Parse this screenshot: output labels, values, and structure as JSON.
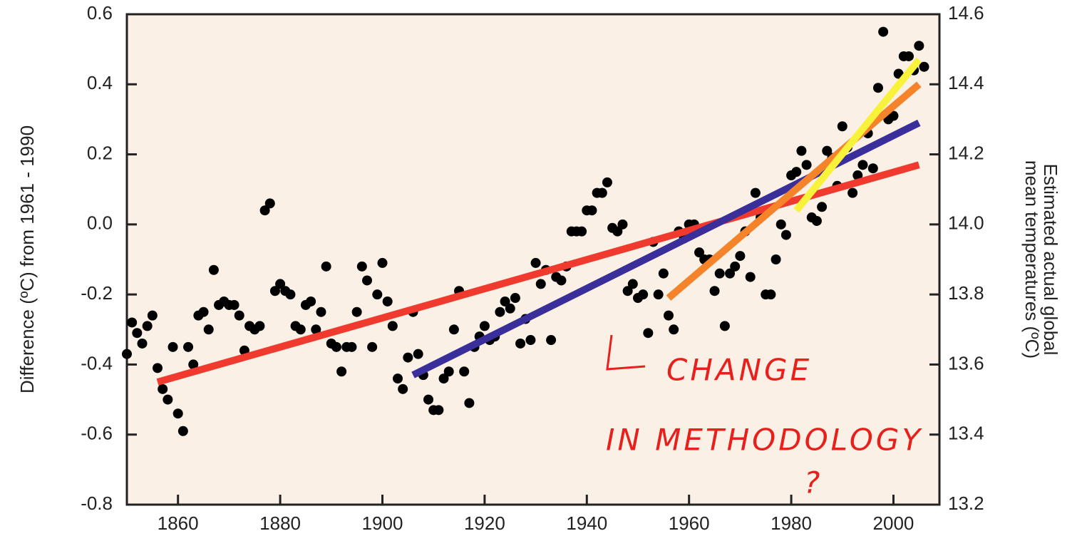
{
  "chart_data": {
    "type": "scatter",
    "y_label": "Difference (ºC) from 1961 - 1990",
    "y2_label": [
      "Estimated actual global",
      "mean temperatures (ºC)"
    ],
    "annotations": [
      "CHANGE",
      "IN METHODOLOGY",
      "?"
    ],
    "x": [
      1850,
      1851,
      1852,
      1853,
      1854,
      1855,
      1856,
      1857,
      1858,
      1859,
      1860,
      1861,
      1862,
      1863,
      1864,
      1865,
      1866,
      1867,
      1868,
      1869,
      1870,
      1871,
      1872,
      1873,
      1874,
      1875,
      1876,
      1877,
      1878,
      1879,
      1880,
      1881,
      1882,
      1883,
      1884,
      1885,
      1886,
      1887,
      1888,
      1889,
      1890,
      1891,
      1892,
      1893,
      1894,
      1895,
      1896,
      1897,
      1898,
      1899,
      1900,
      1901,
      1902,
      1903,
      1904,
      1905,
      1906,
      1907,
      1908,
      1909,
      1910,
      1911,
      1912,
      1913,
      1914,
      1915,
      1916,
      1917,
      1918,
      1919,
      1920,
      1921,
      1922,
      1923,
      1924,
      1925,
      1926,
      1927,
      1928,
      1929,
      1930,
      1931,
      1932,
      1933,
      1934,
      1935,
      1936,
      1937,
      1938,
      1939,
      1940,
      1941,
      1942,
      1943,
      1944,
      1945,
      1946,
      1947,
      1948,
      1949,
      1950,
      1951,
      1952,
      1953,
      1954,
      1955,
      1956,
      1957,
      1958,
      1959,
      1960,
      1961,
      1962,
      1963,
      1964,
      1965,
      1966,
      1967,
      1968,
      1969,
      1970,
      1971,
      1972,
      1973,
      1974,
      1975,
      1976,
      1977,
      1978,
      1979,
      1980,
      1981,
      1982,
      1983,
      1984,
      1985,
      1986,
      1987,
      1988,
      1989,
      1990,
      1991,
      1992,
      1993,
      1994,
      1995,
      1996,
      1997,
      1998,
      1999,
      2000,
      2001,
      2002,
      2003,
      2004,
      2005,
      2006
    ],
    "values": [
      -0.37,
      -0.28,
      -0.31,
      -0.34,
      -0.29,
      -0.26,
      -0.41,
      -0.47,
      -0.5,
      -0.35,
      -0.54,
      -0.59,
      -0.35,
      -0.4,
      -0.26,
      -0.25,
      -0.3,
      -0.13,
      -0.23,
      -0.22,
      -0.23,
      -0.23,
      -0.26,
      -0.36,
      -0.29,
      -0.3,
      -0.29,
      0.04,
      0.06,
      -0.19,
      -0.17,
      -0.19,
      -0.2,
      -0.29,
      -0.3,
      -0.23,
      -0.22,
      -0.3,
      -0.25,
      -0.12,
      -0.34,
      -0.35,
      -0.42,
      -0.35,
      -0.35,
      -0.25,
      -0.12,
      -0.16,
      -0.35,
      -0.2,
      -0.11,
      -0.22,
      -0.29,
      -0.44,
      -0.47,
      -0.38,
      -0.25,
      -0.37,
      -0.43,
      -0.5,
      -0.53,
      -0.53,
      -0.44,
      -0.42,
      -0.3,
      -0.19,
      -0.42,
      -0.51,
      -0.35,
      -0.32,
      -0.29,
      -0.33,
      -0.32,
      -0.25,
      -0.22,
      -0.24,
      -0.21,
      -0.34,
      -0.27,
      -0.33,
      -0.11,
      -0.17,
      -0.13,
      -0.33,
      -0.15,
      -0.16,
      -0.12,
      -0.02,
      -0.02,
      -0.02,
      0.04,
      0.04,
      0.09,
      0.09,
      0.12,
      -0.01,
      -0.02,
      0.0,
      -0.19,
      -0.17,
      -0.21,
      -0.2,
      -0.31,
      -0.05,
      -0.2,
      -0.14,
      -0.26,
      -0.3,
      -0.02,
      -0.04,
      0.0,
      0.0,
      -0.08,
      -0.1,
      -0.1,
      -0.19,
      -0.14,
      -0.29,
      -0.14,
      -0.12,
      -0.09,
      -0.02,
      -0.15,
      0.09,
      0.02,
      -0.2,
      -0.2,
      -0.1,
      0.0,
      -0.03,
      0.14,
      0.15,
      0.21,
      0.17,
      0.02,
      0.01,
      0.05,
      0.21,
      0.19,
      0.11,
      0.28,
      0.22,
      0.09,
      0.14,
      0.17,
      0.26,
      0.16,
      0.39,
      0.55,
      0.3,
      0.31,
      0.43,
      0.48,
      0.48,
      0.44,
      0.51,
      0.45
    ],
    "color": "#000000",
    "trend_lines": [
      {
        "color": "#f03a2e",
        "x": [
          1856,
          2005
        ],
        "values": [
          -0.45,
          0.17
        ]
      },
      {
        "color": "#3a2f9a",
        "x": [
          1906,
          2005
        ],
        "values": [
          -0.43,
          0.29
        ]
      },
      {
        "color": "#f5832a",
        "x": [
          1956,
          2005
        ],
        "values": [
          -0.21,
          0.4
        ]
      },
      {
        "color": "#f8f23a",
        "x": [
          1981,
          2005
        ],
        "values": [
          0.04,
          0.47
        ]
      }
    ],
    "xlim": [
      1850,
      2009
    ],
    "xticks": [
      1860,
      1880,
      1900,
      1920,
      1940,
      1960,
      1980,
      2000
    ],
    "ylim": [
      -0.8,
      0.6
    ],
    "yticks": [
      0.6,
      0.4,
      0.2,
      {
        "value": 0,
        "label": "0.0"
      },
      -0.2,
      -0.4,
      -0.6,
      -0.8
    ],
    "y2lim": [
      13.2,
      14.6
    ],
    "y2ticks": [
      14.6,
      14.4,
      14.2,
      {
        "value": 14,
        "label": "14.0"
      },
      13.8,
      13.6,
      13.4,
      13.2
    ]
  }
}
